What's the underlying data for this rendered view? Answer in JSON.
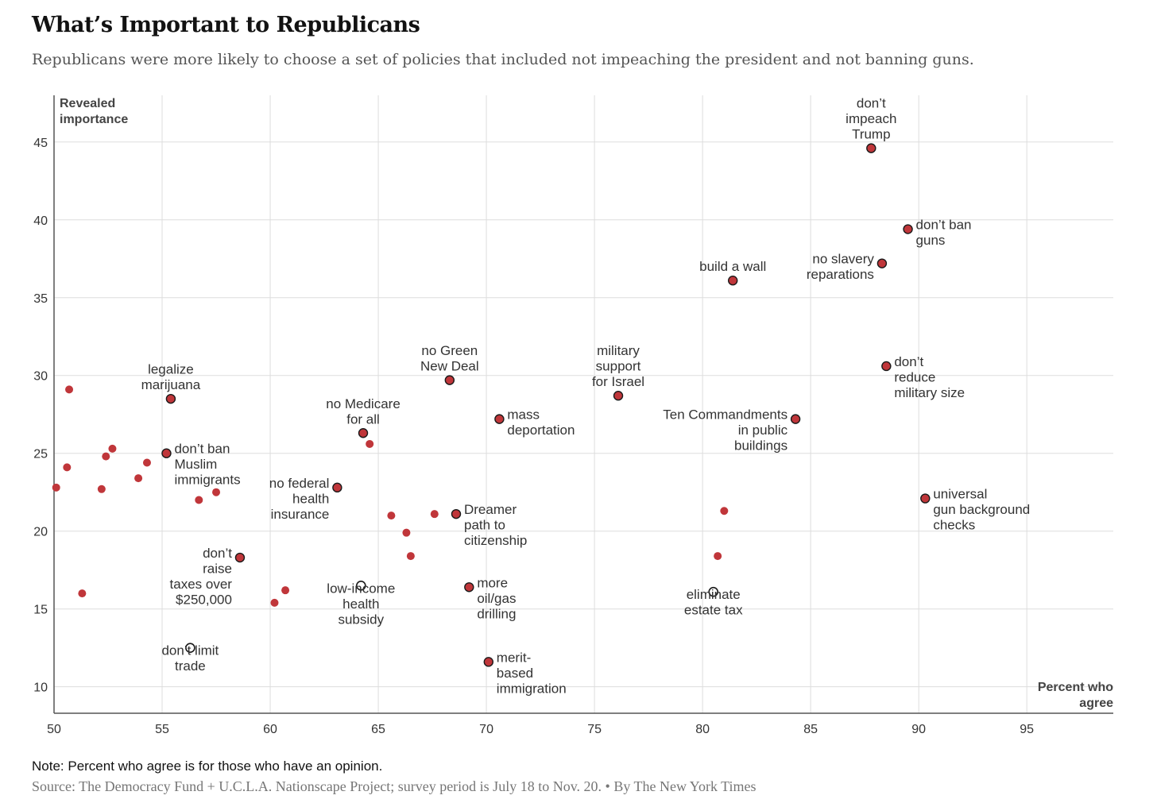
{
  "header": {
    "title": "What’s Important to Republicans",
    "subtitle": "Republicans were more likely to choose a set of policies that included not impeaching the president and not banning guns."
  },
  "footer": {
    "note": "Note: Percent who agree is for those who have an opinion.",
    "source": "Source: The Democracy Fund + U.C.L.A. Nationscape Project; survey period is July 18 to Nov. 20. • By The New York Times"
  },
  "colors": {
    "point_fill": "#c0363a",
    "point_stroke": "#1a1a1a",
    "grid": "#dddddd",
    "axis": "#555555"
  },
  "chart_data": {
    "type": "scatter",
    "xlabel": "Percent who agree",
    "ylabel": "Revealed importance",
    "xlim": [
      50,
      99
    ],
    "ylim": [
      8.3,
      48
    ],
    "xticks": [
      50,
      55,
      60,
      65,
      70,
      75,
      80,
      85,
      90,
      95
    ],
    "yticks": [
      10,
      15,
      20,
      25,
      30,
      35,
      40,
      45
    ],
    "grid": true,
    "labeled_points": [
      {
        "label": "don’t\nimpeach\nTrump",
        "x": 87.8,
        "y": 44.6,
        "style": "filled",
        "anchor": "above"
      },
      {
        "label": "don’t ban\nguns",
        "x": 89.5,
        "y": 39.4,
        "style": "filled",
        "anchor": "right"
      },
      {
        "label": "no slavery\nreparations",
        "x": 88.3,
        "y": 37.2,
        "style": "filled",
        "anchor": "left"
      },
      {
        "label": "build a wall",
        "x": 81.4,
        "y": 36.1,
        "style": "filled",
        "anchor": "above"
      },
      {
        "label": "don’t\nreduce\nmilitary size",
        "x": 88.5,
        "y": 30.6,
        "style": "filled",
        "anchor": "right"
      },
      {
        "label": "no Green\nNew Deal",
        "x": 68.3,
        "y": 29.7,
        "style": "filled",
        "anchor": "above"
      },
      {
        "label": "military\nsupport\nfor Israel",
        "x": 76.1,
        "y": 28.7,
        "style": "filled",
        "anchor": "above"
      },
      {
        "label": "legalize\nmarijuana",
        "x": 55.4,
        "y": 28.5,
        "style": "filled",
        "anchor": "above"
      },
      {
        "label": "mass\ndeportation",
        "x": 70.6,
        "y": 27.2,
        "style": "filled",
        "anchor": "right"
      },
      {
        "label": "Ten Commandments\nin public\nbuildings",
        "x": 84.3,
        "y": 27.2,
        "style": "filled",
        "anchor": "left"
      },
      {
        "label": "no Medicare\nfor all",
        "x": 64.3,
        "y": 26.3,
        "style": "filled",
        "anchor": "above"
      },
      {
        "label": "don’t ban\nMuslim\nimmigrants",
        "x": 55.2,
        "y": 25.0,
        "style": "filled",
        "anchor": "right"
      },
      {
        "label": "no federal\nhealth\ninsurance",
        "x": 63.1,
        "y": 22.8,
        "style": "filled",
        "anchor": "left"
      },
      {
        "label": "universal\ngun background\nchecks",
        "x": 90.3,
        "y": 22.1,
        "style": "filled",
        "anchor": "right"
      },
      {
        "label": "Dreamer\npath to\ncitizenship",
        "x": 68.6,
        "y": 21.1,
        "style": "filled",
        "anchor": "right"
      },
      {
        "label": "don’t\nraise\ntaxes over\n$250,000",
        "x": 58.6,
        "y": 18.3,
        "style": "filled",
        "anchor": "left"
      },
      {
        "label": "low-income\nhealth\nsubsidy",
        "x": 64.2,
        "y": 16.5,
        "style": "hollow",
        "anchor": "below"
      },
      {
        "label": "more\noil/gas\ndrilling",
        "x": 69.2,
        "y": 16.4,
        "style": "filled",
        "anchor": "right"
      },
      {
        "label": "eliminate\nestate tax",
        "x": 80.5,
        "y": 16.1,
        "style": "hollow",
        "anchor": "below"
      },
      {
        "label": "don’t limit\ntrade",
        "x": 56.3,
        "y": 12.5,
        "style": "hollow",
        "anchor": "below"
      },
      {
        "label": "merit-\nbased\nimmigration",
        "x": 70.1,
        "y": 11.6,
        "style": "filled",
        "anchor": "right"
      }
    ],
    "unlabeled_points": [
      {
        "x": 50.7,
        "y": 29.1
      },
      {
        "x": 50.6,
        "y": 24.1
      },
      {
        "x": 50.1,
        "y": 22.8
      },
      {
        "x": 52.4,
        "y": 24.8
      },
      {
        "x": 52.7,
        "y": 25.3
      },
      {
        "x": 52.2,
        "y": 22.7
      },
      {
        "x": 53.9,
        "y": 23.4
      },
      {
        "x": 54.3,
        "y": 24.4
      },
      {
        "x": 51.3,
        "y": 16.0
      },
      {
        "x": 56.7,
        "y": 22.0
      },
      {
        "x": 57.5,
        "y": 22.5
      },
      {
        "x": 60.2,
        "y": 15.4
      },
      {
        "x": 60.7,
        "y": 16.2
      },
      {
        "x": 64.6,
        "y": 25.6
      },
      {
        "x": 65.6,
        "y": 21.0
      },
      {
        "x": 66.3,
        "y": 19.9
      },
      {
        "x": 66.5,
        "y": 18.4
      },
      {
        "x": 67.6,
        "y": 21.1
      },
      {
        "x": 81.0,
        "y": 21.3
      },
      {
        "x": 80.7,
        "y": 18.4
      }
    ]
  }
}
